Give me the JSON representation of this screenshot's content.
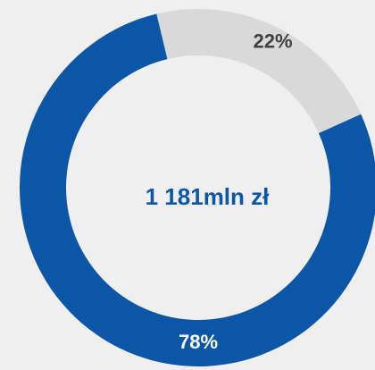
{
  "chart_data": {
    "type": "donut",
    "values": [
      22,
      78
    ],
    "value_labels": [
      "22%",
      "78%"
    ],
    "colors": [
      "#d9d9d9",
      "#0b56a6"
    ],
    "label_colors": [
      "#404040",
      "#ffffff"
    ],
    "center_text": "1 181mln zł"
  }
}
